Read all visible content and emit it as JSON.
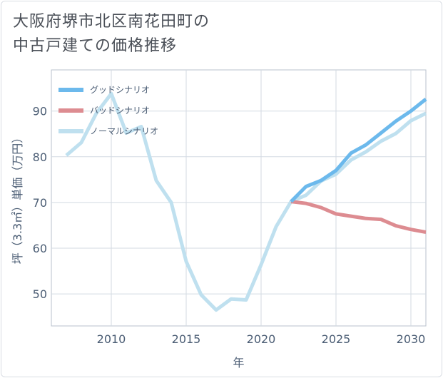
{
  "title": {
    "line1": "大阪府堺市北区南花田町の",
    "line2": "中古戸建ての価格推移"
  },
  "chart_data": {
    "type": "line",
    "title": "大阪府堺市北区南花田町の中古戸建ての価格推移",
    "xlabel": "年",
    "ylabel": "坪（3.3㎡）単価（万円）",
    "xlim": [
      2006,
      2031
    ],
    "ylim": [
      43,
      99
    ],
    "xticks": [
      2010,
      2015,
      2020,
      2025,
      2030
    ],
    "yticks": [
      50,
      60,
      70,
      80,
      90
    ],
    "grid": true,
    "legend_position": "top-left",
    "series": [
      {
        "name": "グッドシナリオ",
        "color": "#6cb9ec",
        "x": [
          2022,
          2023,
          2024,
          2025,
          2026,
          2027,
          2028,
          2029,
          2030,
          2031
        ],
        "y": [
          70.2,
          73.5,
          74.8,
          77.0,
          80.8,
          82.6,
          85.2,
          87.8,
          90.0,
          92.6
        ]
      },
      {
        "name": "バッドシナリオ",
        "color": "#dd8c91",
        "x": [
          2022,
          2023,
          2024,
          2025,
          2026,
          2027,
          2028,
          2029,
          2030,
          2031
        ],
        "y": [
          70.2,
          69.8,
          68.9,
          67.5,
          67.0,
          66.5,
          66.3,
          64.9,
          64.1,
          63.5
        ]
      },
      {
        "name": "ノーマルシナリオ",
        "color": "#bfe0ef",
        "x": [
          2007,
          2008,
          2009,
          2010,
          2011,
          2012,
          2013,
          2014,
          2015,
          2016,
          2017,
          2018,
          2019,
          2020,
          2021,
          2022,
          2023,
          2024,
          2025,
          2026,
          2027,
          2028,
          2029,
          2030,
          2031
        ],
        "y": [
          80.3,
          83.1,
          89.5,
          93.8,
          85.2,
          86.6,
          74.8,
          70.0,
          57.1,
          49.8,
          46.5,
          48.9,
          48.7,
          56.4,
          64.7,
          70.2,
          71.6,
          74.7,
          76.2,
          79.3,
          81.1,
          83.4,
          85.1,
          87.9,
          89.5
        ]
      }
    ]
  }
}
